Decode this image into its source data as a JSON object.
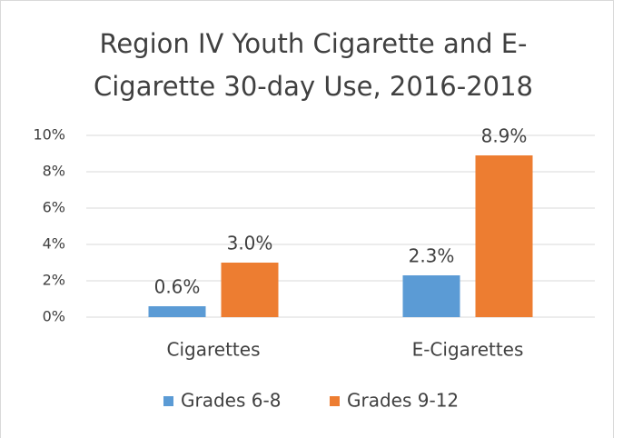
{
  "chart_data": {
    "type": "bar",
    "title": [
      "Region IV Youth Cigarette and E-",
      "Cigarette 30-day Use, 2016-2018"
    ],
    "categories": [
      "Cigarettes",
      "E-Cigarettes"
    ],
    "series": [
      {
        "name": "Grades 6-8",
        "color": "#5b9bd5",
        "values": [
          0.6,
          2.3
        ],
        "value_labels": [
          "0.6%",
          "2.3%"
        ]
      },
      {
        "name": "Grades 9-12",
        "color": "#ed7d31",
        "values": [
          3.0,
          8.9
        ],
        "value_labels": [
          "3.0%",
          "8.9%"
        ]
      }
    ],
    "ylim": [
      0,
      10
    ],
    "yticks": [
      {
        "value": 0,
        "label": "0%"
      },
      {
        "value": 2,
        "label": "2%"
      },
      {
        "value": 4,
        "label": "4%"
      },
      {
        "value": 6,
        "label": "6%"
      },
      {
        "value": 8,
        "label": "8%"
      },
      {
        "value": 10,
        "label": "10%"
      }
    ],
    "grid": true,
    "legend": "bottom"
  }
}
